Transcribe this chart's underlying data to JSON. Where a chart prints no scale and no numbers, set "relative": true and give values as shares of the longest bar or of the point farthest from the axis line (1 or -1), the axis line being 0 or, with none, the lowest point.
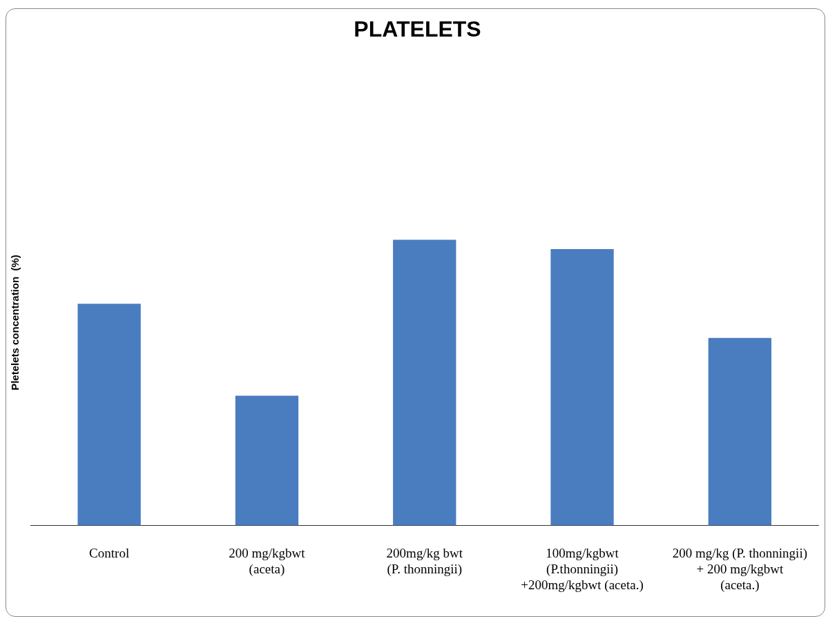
{
  "chart_data": {
    "type": "bar",
    "title": "PLATELETS",
    "ylabel": "Pletelets concentration  (%)",
    "relative": true,
    "categories": [
      "Control",
      "200 mg/kgbwt\n(aceta)",
      "200mg/kg bwt\n(P. thonningii)",
      "100mg/kgbwt\n(P.thonningii)\n+200mg/kgbwt (aceta.)",
      "200 mg/kg (P. thonningii)\n+ 200 mg/kgbwt\n(aceta.)"
    ],
    "values": [
      0.776,
      0.454,
      1,
      0.967,
      0.656
    ],
    "color": "#4a7cc0",
    "grid": false,
    "legend": false
  }
}
